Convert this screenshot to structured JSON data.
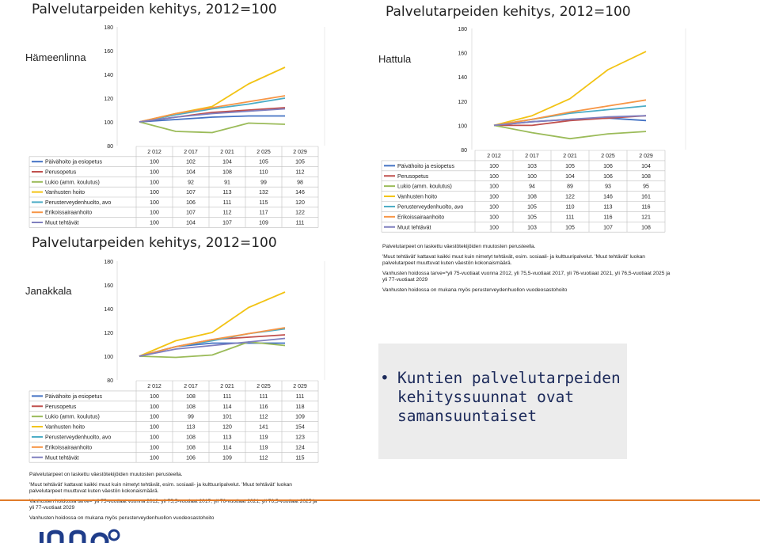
{
  "chart_data": [
    {
      "type": "line",
      "title": "Palvelutarpeiden kehitys, 2012=100",
      "municipality": "Hämeenlinna",
      "ylim": [
        80,
        180
      ],
      "yticks": [
        "180",
        "160",
        "140",
        "120",
        "100",
        "80"
      ],
      "categories": [
        "2 012",
        "2 017",
        "2 021",
        "2 025",
        "2 029"
      ],
      "series": [
        {
          "name": "Päivähoito ja esiopetus",
          "color": "#4472c4",
          "values": [
            100,
            102,
            104,
            105,
            105
          ]
        },
        {
          "name": "Perusopetus",
          "color": "#c0504d",
          "values": [
            100,
            104,
            108,
            110,
            112
          ]
        },
        {
          "name": "Lukio (amm. koulutus)",
          "color": "#9bbb59",
          "values": [
            100,
            92,
            91,
            99,
            98
          ]
        },
        {
          "name": "Vanhusten hoito",
          "color": "#f2c314",
          "values": [
            100,
            107,
            113,
            132,
            146
          ]
        },
        {
          "name": "Perusterveydenhuolto, avo",
          "color": "#4bacc6",
          "values": [
            100,
            106,
            111,
            115,
            120
          ]
        },
        {
          "name": "Erikoissairaanhoito",
          "color": "#f79646",
          "values": [
            100,
            107,
            112,
            117,
            122
          ]
        },
        {
          "name": "Muut tehtävät",
          "color": "#7f7fbf",
          "values": [
            100,
            104,
            107,
            109,
            111
          ]
        }
      ],
      "table_values": [
        [
          "100",
          "102",
          "104",
          "105",
          "105"
        ],
        [
          "100",
          "104",
          "108",
          "110",
          "112"
        ],
        [
          "100",
          "92",
          "91",
          "99",
          "98"
        ],
        [
          "100",
          "107",
          "113",
          "132",
          "146"
        ],
        [
          "100",
          "106",
          "111",
          "115",
          "120"
        ],
        [
          "100",
          "107",
          "112",
          "117",
          "122"
        ],
        [
          "100",
          "104",
          "107",
          "109",
          "111"
        ]
      ]
    },
    {
      "type": "line",
      "title": "Palvelutarpeiden kehitys, 2012=100",
      "municipality": "Hattula",
      "ylim": [
        80,
        180
      ],
      "yticks": [
        "180",
        "160",
        "140",
        "120",
        "100",
        "80"
      ],
      "categories": [
        "2 012",
        "2 017",
        "2 021",
        "2 025",
        "2 029"
      ],
      "series": [
        {
          "name": "Päivähoito ja esiopetus",
          "color": "#4472c4",
          "values": [
            100,
            103,
            105,
            106,
            104
          ]
        },
        {
          "name": "Perusopetus",
          "color": "#c0504d",
          "values": [
            100,
            100,
            104,
            106,
            108
          ]
        },
        {
          "name": "Lukio (amm. koulutus)",
          "color": "#9bbb59",
          "values": [
            100,
            94,
            89,
            93,
            95
          ]
        },
        {
          "name": "Vanhusten hoito",
          "color": "#f2c314",
          "values": [
            100,
            108,
            122,
            146,
            161
          ]
        },
        {
          "name": "Perusterveydenhuolto, avo",
          "color": "#4bacc6",
          "values": [
            100,
            105,
            110,
            113,
            116
          ]
        },
        {
          "name": "Erikoissairaanhoito",
          "color": "#f79646",
          "values": [
            100,
            105,
            111,
            116,
            121
          ]
        },
        {
          "name": "Muut tehtävät",
          "color": "#7f7fbf",
          "values": [
            100,
            103,
            105,
            107,
            108
          ]
        }
      ],
      "table_values": [
        [
          "100",
          "103",
          "105",
          "106",
          "104"
        ],
        [
          "100",
          "100",
          "104",
          "106",
          "108"
        ],
        [
          "100",
          "94",
          "89",
          "93",
          "95"
        ],
        [
          "100",
          "108",
          "122",
          "146",
          "161"
        ],
        [
          "100",
          "105",
          "110",
          "113",
          "116"
        ],
        [
          "100",
          "105",
          "111",
          "116",
          "121"
        ],
        [
          "100",
          "103",
          "105",
          "107",
          "108"
        ]
      ]
    },
    {
      "type": "line",
      "title": "Palvelutarpeiden kehitys, 2012=100",
      "municipality": "Janakkala",
      "ylim": [
        80,
        180
      ],
      "yticks": [
        "180",
        "160",
        "140",
        "120",
        "100",
        "80"
      ],
      "categories": [
        "2 012",
        "2 017",
        "2 021",
        "2 025",
        "2 029"
      ],
      "series": [
        {
          "name": "Päivähoito ja esiopetus",
          "color": "#4472c4",
          "values": [
            100,
            108,
            111,
            111,
            111
          ]
        },
        {
          "name": "Perusopetus",
          "color": "#c0504d",
          "values": [
            100,
            108,
            114,
            116,
            118
          ]
        },
        {
          "name": "Lukio (amm. koulutus)",
          "color": "#9bbb59",
          "values": [
            100,
            99,
            101,
            112,
            109
          ]
        },
        {
          "name": "Vanhusten hoito",
          "color": "#f2c314",
          "values": [
            100,
            113,
            120,
            141,
            154
          ]
        },
        {
          "name": "Perusterveydenhuolto, avo",
          "color": "#4bacc6",
          "values": [
            100,
            108,
            113,
            119,
            123
          ]
        },
        {
          "name": "Erikoissairaanhoito",
          "color": "#f79646",
          "values": [
            100,
            108,
            114,
            119,
            124
          ]
        },
        {
          "name": "Muut tehtävät",
          "color": "#7f7fbf",
          "values": [
            100,
            106,
            109,
            112,
            115
          ]
        }
      ],
      "table_values": [
        [
          "100",
          "108",
          "111",
          "111",
          "111"
        ],
        [
          "100",
          "108",
          "114",
          "116",
          "118"
        ],
        [
          "100",
          "99",
          "101",
          "112",
          "109"
        ],
        [
          "100",
          "113",
          "120",
          "141",
          "154"
        ],
        [
          "100",
          "108",
          "113",
          "119",
          "123"
        ],
        [
          "100",
          "108",
          "114",
          "119",
          "124"
        ],
        [
          "100",
          "106",
          "109",
          "112",
          "115"
        ]
      ]
    }
  ],
  "notes": {
    "line1": "Palvelutarpeet on laskettu väestötekijöiden muutosten perusteella.",
    "line2": "'Muut tehtävät' kattavat kaikki muut kuin nimetyt tehtävät, esim. sosiaali- ja kulttuuripalvelut. 'Muut tehtävät' luokan",
    "line3": "palvelutarpeet muuttuvat kuten väestön kokonaismäärä.",
    "line4": "Vanhusten hoidossa tarve=*yli 75-vuotiaat vuonna 2012, yli 75,5-vuotiaat 2017, yli 76-vuotiaat 2021, yli 76,5-vuotiaat 2025 ja",
    "line5": "yli 77-vuotiaat 2029",
    "line6": "Vanhusten hoidossa on mukana myös perusterveydenhuollon vuodeosastohoito"
  },
  "callout": {
    "bullet": "•",
    "line1": "Kuntien palvelutarpeiden",
    "line2": "kehityssuunnat ovat",
    "line3": "samansuuntaiset"
  },
  "colors": {
    "accent_line": "#e07b2a",
    "logo": "#1f3d8a",
    "callout_bg": "#ececec"
  }
}
